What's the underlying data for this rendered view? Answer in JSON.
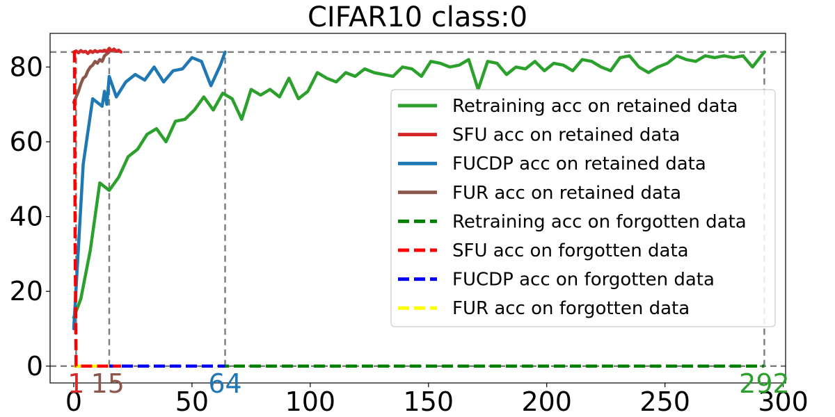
{
  "chart_data": {
    "type": "line",
    "title": "CIFAR10 class:0",
    "xlabel": "",
    "ylabel": "",
    "xlim": [
      -10,
      301
    ],
    "ylim": [
      -4.5,
      89
    ],
    "xticks": [
      0,
      50,
      100,
      150,
      200,
      250,
      300
    ],
    "yticks": [
      0,
      20,
      40,
      60,
      80
    ],
    "grid": false,
    "legend_position": "right",
    "reference_lines": {
      "horizontal": [
        84,
        0
      ],
      "vertical": [
        1,
        15,
        64,
        292
      ]
    },
    "end_markers": [
      {
        "label": "1",
        "x": 1,
        "color": "#d62728"
      },
      {
        "label": "15",
        "x": 15,
        "color": "#8c564b"
      },
      {
        "label": "64",
        "x": 64,
        "color": "#1f77b4"
      },
      {
        "label": "292",
        "x": 292,
        "color": "#2ca02c"
      }
    ],
    "series": [
      {
        "name": "Retraining acc on retained data",
        "color": "#2ca02c",
        "dash": "solid",
        "x": [
          0,
          3,
          7,
          11,
          15,
          19,
          23,
          27,
          31,
          35,
          39,
          43,
          47,
          51,
          55,
          59,
          63,
          67,
          71,
          75,
          79,
          83,
          87,
          91,
          95,
          99,
          103,
          107,
          111,
          115,
          119,
          123,
          127,
          131,
          135,
          139,
          143,
          147,
          151,
          155,
          159,
          163,
          167,
          171,
          175,
          179,
          183,
          187,
          191,
          195,
          199,
          203,
          207,
          211,
          215,
          219,
          223,
          227,
          231,
          235,
          239,
          243,
          247,
          251,
          255,
          259,
          263,
          267,
          271,
          275,
          279,
          283,
          287,
          292
        ],
        "y": [
          13,
          18,
          31,
          49,
          47,
          50.5,
          56,
          58,
          62,
          63.5,
          60,
          65.5,
          66,
          68.5,
          72,
          68.5,
          73,
          71.5,
          66,
          74,
          72.5,
          74,
          72,
          77,
          71.5,
          73.5,
          78.5,
          77,
          76,
          78.5,
          77.5,
          79.5,
          78.5,
          78,
          77.5,
          80,
          79.5,
          77.5,
          81.5,
          81,
          80,
          80.5,
          82,
          74,
          81.5,
          81,
          78,
          80,
          79.5,
          81.5,
          79,
          81,
          80.5,
          79,
          82,
          81.5,
          80,
          79,
          82.5,
          83,
          80,
          78.5,
          80,
          81,
          83,
          82,
          81.5,
          83,
          82.5,
          83,
          82.5,
          83,
          80,
          84
        ]
      },
      {
        "name": "SFU acc on retained data",
        "color": "#d62728",
        "dash": "solid",
        "x": [
          0,
          1,
          2,
          3,
          4,
          5,
          6,
          7,
          8,
          9,
          10,
          11,
          12,
          13,
          14,
          15,
          16,
          17,
          18,
          19,
          20
        ],
        "y": [
          84,
          84.3,
          83.8,
          84.4,
          84,
          84.2,
          83.6,
          84.3,
          83.9,
          84.4,
          84,
          84.3,
          84.2,
          84.5,
          84.1,
          85,
          84.3,
          84.8,
          84.2,
          84.5,
          84
        ]
      },
      {
        "name": "FUCDP acc on retained data",
        "color": "#1f77b4",
        "dash": "solid",
        "x": [
          0,
          4,
          8,
          12,
          13,
          14,
          15,
          18,
          22,
          26,
          30,
          34,
          38,
          42,
          46,
          50,
          54,
          58,
          62,
          64
        ],
        "y": [
          10,
          54,
          71.5,
          69.5,
          73.5,
          70,
          77.5,
          72,
          76,
          78,
          76.5,
          80,
          76,
          79,
          79.5,
          82.5,
          81.5,
          75,
          80.5,
          84
        ]
      },
      {
        "name": "FUR acc on retained data",
        "color": "#8c564b",
        "dash": "solid",
        "x": [
          0,
          1,
          2,
          3,
          4,
          5,
          6,
          7,
          8,
          9,
          10,
          11,
          12,
          13,
          14,
          15
        ],
        "y": [
          70.5,
          72,
          73.5,
          75.5,
          77,
          77.5,
          79,
          80,
          80.5,
          81.5,
          81,
          82,
          81.5,
          83,
          83.5,
          84
        ]
      },
      {
        "name": "Retraining acc on forgotten data",
        "color": "#008000",
        "dash": "dashed",
        "x": [
          0,
          292
        ],
        "y": [
          0,
          0
        ]
      },
      {
        "name": "SFU acc on forgotten data",
        "color": "#ff0000",
        "dash": "dashed",
        "x": [
          0,
          0.3,
          0.6,
          1,
          2,
          20
        ],
        "y": [
          84,
          84,
          30,
          0,
          0,
          0
        ]
      },
      {
        "name": "FUCDP acc on forgotten data",
        "color": "#0000ff",
        "dash": "dashed",
        "x": [
          0,
          64
        ],
        "y": [
          0,
          0
        ]
      },
      {
        "name": "FUR acc on forgotten data",
        "color": "#ffff00",
        "dash": "dashed",
        "x": [
          0,
          15
        ],
        "y": [
          0,
          0
        ]
      }
    ]
  }
}
